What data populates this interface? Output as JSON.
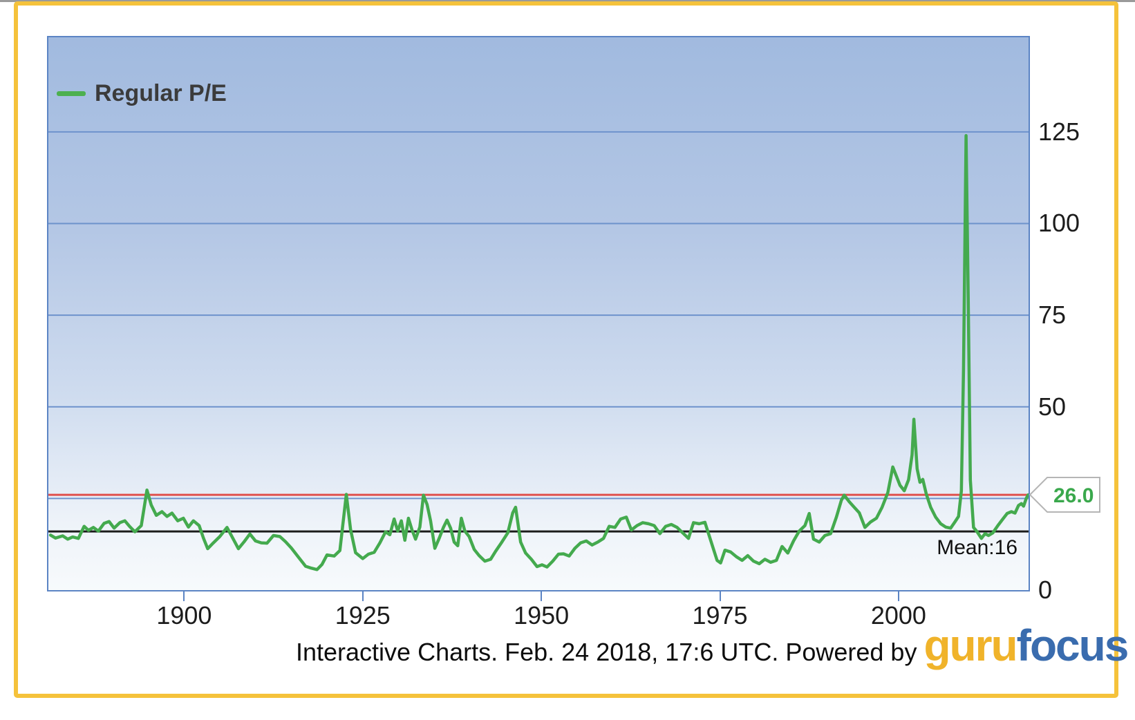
{
  "legend": {
    "label": "Regular P/E"
  },
  "overlays": {
    "current_value_label": "26.0",
    "mean_label": "Mean:16"
  },
  "caption": {
    "text": "Interactive Charts. Feb. 24 2018, 17:6 UTC. Powered by",
    "logo_part1": "guru",
    "logo_part2": "focus"
  },
  "colors": {
    "series_green": "#44aa4e",
    "current_line_red": "#e0504c",
    "mean_line_black": "#1b1b1b",
    "grid_blue": "#6d92cc",
    "plot_border_blue": "#5b84c4",
    "frame_yellow": "#f5c23b",
    "legend_swatch_green": "#4db04f",
    "callout_text_green": "#3aa84c",
    "logo_guru_yellow": "#f0b32a",
    "logo_focus_blue": "#3a6cae"
  },
  "chart_data": {
    "type": "line",
    "title": "",
    "xlabel": "",
    "ylabel": "",
    "legend_position": "top-left",
    "grid": true,
    "x_axis": {
      "min": 1881,
      "max": 2018.2,
      "ticks": [
        {
          "year": 1900,
          "label": "1900"
        },
        {
          "year": 1925,
          "label": "1925"
        },
        {
          "year": 1950,
          "label": "1950"
        },
        {
          "year": 1975,
          "label": "1975"
        },
        {
          "year": 2000,
          "label": "2000"
        }
      ]
    },
    "y_axis": {
      "min": 0,
      "max": 150.8,
      "gridlines": [
        25,
        50,
        75,
        100,
        125
      ],
      "tick_labels": [
        {
          "value": 0,
          "label": "0"
        },
        {
          "value": 50,
          "label": "50"
        },
        {
          "value": 75,
          "label": "75"
        },
        {
          "value": 100,
          "label": "100"
        },
        {
          "value": 125,
          "label": "125"
        }
      ]
    },
    "reference_lines": [
      {
        "name": "current",
        "value": 26.0,
        "color": "#e0504c",
        "width": 3,
        "label": "26.0"
      },
      {
        "name": "mean",
        "value": 16,
        "color": "#1b1b1b",
        "width": 3,
        "label": "Mean:16"
      }
    ],
    "series": [
      {
        "name": "Regular P/E",
        "color": "#44aa4e",
        "width": 4.5,
        "points": [
          [
            1881.3,
            15.0
          ],
          [
            1882,
            14.2
          ],
          [
            1883,
            14.8
          ],
          [
            1883.7,
            13.9
          ],
          [
            1884.4,
            14.5
          ],
          [
            1885.2,
            14.1
          ],
          [
            1886,
            17.4
          ],
          [
            1886.6,
            16.3
          ],
          [
            1887.3,
            17.1
          ],
          [
            1888,
            16.1
          ],
          [
            1888.8,
            18.2
          ],
          [
            1889.5,
            18.7
          ],
          [
            1890.2,
            16.9
          ],
          [
            1891,
            18.4
          ],
          [
            1891.7,
            18.9
          ],
          [
            1892.4,
            17.3
          ],
          [
            1893.1,
            15.9
          ],
          [
            1894,
            17.6
          ],
          [
            1894.8,
            27.3
          ],
          [
            1895.4,
            23.2
          ],
          [
            1896.1,
            20.4
          ],
          [
            1896.9,
            21.4
          ],
          [
            1897.6,
            20.1
          ],
          [
            1898.3,
            21.0
          ],
          [
            1899.1,
            18.9
          ],
          [
            1899.9,
            19.6
          ],
          [
            1900.6,
            17.2
          ],
          [
            1901.3,
            18.9
          ],
          [
            1902.1,
            17.6
          ],
          [
            1902.7,
            14.2
          ],
          [
            1903.3,
            11.3
          ],
          [
            1904.1,
            12.9
          ],
          [
            1905,
            14.6
          ],
          [
            1906,
            17.1
          ],
          [
            1906.8,
            14.2
          ],
          [
            1907.6,
            11.3
          ],
          [
            1908.4,
            13.2
          ],
          [
            1909.2,
            15.3
          ],
          [
            1910,
            13.4
          ],
          [
            1910.8,
            12.9
          ],
          [
            1911.6,
            12.8
          ],
          [
            1912.5,
            14.9
          ],
          [
            1913.4,
            14.6
          ],
          [
            1914.2,
            13.2
          ],
          [
            1915,
            11.5
          ],
          [
            1916,
            9.0
          ],
          [
            1917,
            6.5
          ],
          [
            1917.8,
            6.0
          ],
          [
            1918.6,
            5.6
          ],
          [
            1919.3,
            7.0
          ],
          [
            1920,
            9.6
          ],
          [
            1921,
            9.3
          ],
          [
            1921.8,
            10.8
          ],
          [
            1922.7,
            26.1
          ],
          [
            1923.3,
            16.5
          ],
          [
            1924,
            10.2
          ],
          [
            1925,
            8.6
          ],
          [
            1925.8,
            9.8
          ],
          [
            1926.6,
            10.3
          ],
          [
            1927.4,
            12.9
          ],
          [
            1928.2,
            15.9
          ],
          [
            1928.8,
            15.1
          ],
          [
            1929.4,
            19.4
          ],
          [
            1929.9,
            16.1
          ],
          [
            1930.4,
            18.9
          ],
          [
            1930.9,
            13.6
          ],
          [
            1931.4,
            19.6
          ],
          [
            1931.9,
            16.4
          ],
          [
            1932.4,
            13.9
          ],
          [
            1933,
            17.2
          ],
          [
            1933.5,
            25.9
          ],
          [
            1934,
            23.4
          ],
          [
            1934.5,
            18.9
          ],
          [
            1935.1,
            11.4
          ],
          [
            1935.7,
            14.1
          ],
          [
            1936.3,
            17.1
          ],
          [
            1936.8,
            19.1
          ],
          [
            1937.3,
            16.9
          ],
          [
            1937.8,
            13.1
          ],
          [
            1938.3,
            12.1
          ],
          [
            1938.8,
            19.6
          ],
          [
            1939.3,
            16.1
          ],
          [
            1939.9,
            14.6
          ],
          [
            1940.6,
            11.1
          ],
          [
            1941.3,
            9.4
          ],
          [
            1942.1,
            7.9
          ],
          [
            1942.9,
            8.4
          ],
          [
            1943.6,
            10.6
          ],
          [
            1944.4,
            12.9
          ],
          [
            1945.3,
            15.6
          ],
          [
            1946,
            21.1
          ],
          [
            1946.4,
            22.6
          ],
          [
            1947.1,
            13.1
          ],
          [
            1947.8,
            10.1
          ],
          [
            1948.6,
            8.4
          ],
          [
            1949.4,
            6.4
          ],
          [
            1950.1,
            6.9
          ],
          [
            1950.8,
            6.3
          ],
          [
            1951.6,
            7.9
          ],
          [
            1952.4,
            9.8
          ],
          [
            1953.1,
            9.9
          ],
          [
            1953.9,
            9.3
          ],
          [
            1954.7,
            11.4
          ],
          [
            1955.5,
            12.9
          ],
          [
            1956.3,
            13.4
          ],
          [
            1957.1,
            12.3
          ],
          [
            1957.9,
            13.1
          ],
          [
            1958.7,
            14.1
          ],
          [
            1959.5,
            17.4
          ],
          [
            1960.3,
            17.1
          ],
          [
            1961.1,
            19.4
          ],
          [
            1961.9,
            19.9
          ],
          [
            1962.6,
            16.4
          ],
          [
            1963.4,
            17.6
          ],
          [
            1964.2,
            18.4
          ],
          [
            1965,
            18.1
          ],
          [
            1965.8,
            17.6
          ],
          [
            1966.6,
            15.4
          ],
          [
            1967.4,
            17.4
          ],
          [
            1968.2,
            17.9
          ],
          [
            1969,
            17.1
          ],
          [
            1969.8,
            15.6
          ],
          [
            1970.6,
            14.1
          ],
          [
            1971.3,
            18.4
          ],
          [
            1972.1,
            18.1
          ],
          [
            1972.9,
            18.5
          ],
          [
            1973.7,
            13.6
          ],
          [
            1974.6,
            8.1
          ],
          [
            1975.1,
            7.4
          ],
          [
            1975.7,
            10.9
          ],
          [
            1976.5,
            10.4
          ],
          [
            1977.3,
            9.1
          ],
          [
            1978.1,
            8.1
          ],
          [
            1978.9,
            9.4
          ],
          [
            1979.7,
            7.9
          ],
          [
            1980.5,
            7.2
          ],
          [
            1981.3,
            8.4
          ],
          [
            1982.1,
            7.6
          ],
          [
            1982.9,
            8.1
          ],
          [
            1983.7,
            11.9
          ],
          [
            1984.5,
            10.1
          ],
          [
            1985.3,
            13.4
          ],
          [
            1986.1,
            16.1
          ],
          [
            1986.9,
            17.6
          ],
          [
            1987.5,
            20.9
          ],
          [
            1988.1,
            13.9
          ],
          [
            1988.9,
            13.1
          ],
          [
            1989.7,
            14.9
          ],
          [
            1990.5,
            15.4
          ],
          [
            1991.3,
            19.9
          ],
          [
            1992,
            24.5
          ],
          [
            1992.4,
            25.9
          ],
          [
            1993.1,
            24.1
          ],
          [
            1993.8,
            22.6
          ],
          [
            1994.5,
            21.1
          ],
          [
            1995.3,
            17.1
          ],
          [
            1996.1,
            18.6
          ],
          [
            1996.9,
            19.6
          ],
          [
            1997.7,
            22.6
          ],
          [
            1998.5,
            26.6
          ],
          [
            1999.2,
            33.6
          ],
          [
            1999.7,
            31.1
          ],
          [
            2000.2,
            28.6
          ],
          [
            2000.8,
            27.1
          ],
          [
            2001.4,
            30.1
          ],
          [
            2001.9,
            36.9
          ],
          [
            2002.15,
            46.6
          ],
          [
            2002.6,
            33.1
          ],
          [
            2003,
            29.4
          ],
          [
            2003.4,
            30.2
          ],
          [
            2003.9,
            26.1
          ],
          [
            2004.5,
            22.6
          ],
          [
            2005.2,
            19.9
          ],
          [
            2005.9,
            18.1
          ],
          [
            2006.6,
            17.2
          ],
          [
            2007.3,
            16.9
          ],
          [
            2007.9,
            18.6
          ],
          [
            2008.4,
            20.1
          ],
          [
            2008.8,
            27.0
          ],
          [
            2009.1,
            60.0
          ],
          [
            2009.45,
            124.0
          ],
          [
            2009.75,
            80.0
          ],
          [
            2010.05,
            30.0
          ],
          [
            2010.5,
            17.1
          ],
          [
            2011,
            15.9
          ],
          [
            2011.6,
            14.1
          ],
          [
            2012.1,
            15.4
          ],
          [
            2012.6,
            14.9
          ],
          [
            2013.2,
            15.6
          ],
          [
            2013.9,
            17.6
          ],
          [
            2014.6,
            19.4
          ],
          [
            2015.2,
            20.9
          ],
          [
            2015.8,
            21.4
          ],
          [
            2016.3,
            21.0
          ],
          [
            2016.8,
            23.1
          ],
          [
            2017.2,
            23.6
          ],
          [
            2017.5,
            22.9
          ],
          [
            2017.9,
            25.1
          ],
          [
            2018.15,
            26.0
          ]
        ]
      }
    ]
  }
}
